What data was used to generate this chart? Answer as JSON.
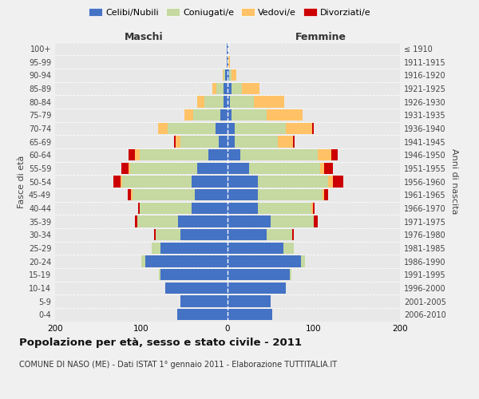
{
  "age_groups": [
    "0-4",
    "5-9",
    "10-14",
    "15-19",
    "20-24",
    "25-29",
    "30-34",
    "35-39",
    "40-44",
    "45-49",
    "50-54",
    "55-59",
    "60-64",
    "65-69",
    "70-74",
    "75-79",
    "80-84",
    "85-89",
    "90-94",
    "95-99",
    "100+"
  ],
  "birth_years": [
    "2006-2010",
    "2001-2005",
    "1996-2000",
    "1991-1995",
    "1986-1990",
    "1981-1985",
    "1976-1980",
    "1971-1975",
    "1966-1970",
    "1961-1965",
    "1956-1960",
    "1951-1955",
    "1946-1950",
    "1941-1945",
    "1936-1940",
    "1931-1935",
    "1926-1930",
    "1921-1925",
    "1916-1920",
    "1911-1915",
    "≤ 1910"
  ],
  "colors": {
    "celibe": "#4472c4",
    "coniugato": "#c5d9a0",
    "vedovo": "#ffc266",
    "divorziato": "#cc0000"
  },
  "maschi": {
    "celibe": [
      58,
      55,
      72,
      78,
      95,
      78,
      55,
      57,
      42,
      38,
      42,
      35,
      22,
      10,
      14,
      8,
      5,
      5,
      3,
      1,
      1
    ],
    "coniugato": [
      0,
      0,
      0,
      2,
      5,
      10,
      28,
      48,
      60,
      72,
      80,
      78,
      80,
      45,
      55,
      32,
      22,
      8,
      2,
      0,
      0
    ],
    "vedovo": [
      0,
      0,
      0,
      0,
      0,
      0,
      0,
      0,
      0,
      2,
      2,
      2,
      5,
      5,
      12,
      10,
      8,
      5,
      1,
      0,
      0
    ],
    "divorziato": [
      0,
      0,
      0,
      0,
      0,
      0,
      2,
      2,
      2,
      4,
      8,
      8,
      8,
      2,
      0,
      0,
      0,
      0,
      0,
      0,
      0
    ]
  },
  "femmine": {
    "nubile": [
      52,
      50,
      68,
      72,
      85,
      65,
      45,
      50,
      35,
      35,
      35,
      25,
      15,
      8,
      8,
      5,
      3,
      5,
      2,
      1,
      1
    ],
    "coniugata": [
      0,
      0,
      0,
      2,
      5,
      12,
      30,
      50,
      62,
      75,
      82,
      82,
      90,
      50,
      60,
      40,
      28,
      12,
      3,
      0,
      0
    ],
    "vedova": [
      0,
      0,
      0,
      0,
      0,
      0,
      0,
      0,
      2,
      2,
      5,
      5,
      15,
      18,
      30,
      42,
      35,
      20,
      5,
      2,
      0
    ],
    "divorziata": [
      0,
      0,
      0,
      0,
      0,
      0,
      2,
      5,
      2,
      5,
      12,
      10,
      8,
      2,
      2,
      0,
      0,
      0,
      0,
      0,
      0
    ]
  },
  "xlim": 200,
  "title_main": "Popolazione per età, sesso e stato civile - 2011",
  "title_sub": "COMUNE DI NASO (ME) - Dati ISTAT 1° gennaio 2011 - Elaborazione TUTTITALIA.IT",
  "ylabel_left": "Fasce di età",
  "ylabel_right": "Anni di nascita",
  "xlabel_left": "Maschi",
  "xlabel_right": "Femmine",
  "legend_labels": [
    "Celibi/Nubili",
    "Coniugati/e",
    "Vedovi/e",
    "Divorziati/e"
  ],
  "bg_color": "#f0f0f0",
  "plot_bg_color": "#e8e8e8"
}
